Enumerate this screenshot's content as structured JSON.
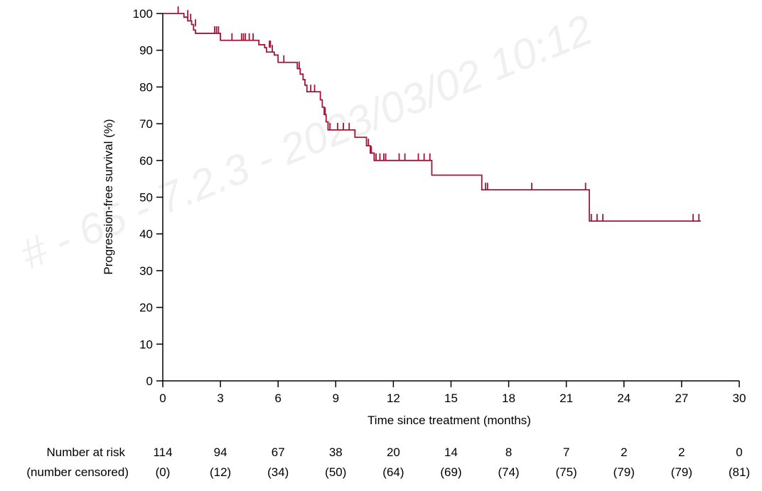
{
  "watermark": "# - 65 - 7.2.3 - 2023/03/02 10:12",
  "chart_data": {
    "type": "line",
    "title": "",
    "xlabel": "Time since treatment (months)",
    "ylabel": "Progression-free survival (%)",
    "xlim": [
      0,
      30
    ],
    "ylim": [
      0,
      100
    ],
    "x_ticks": [
      0,
      3,
      6,
      9,
      12,
      15,
      18,
      21,
      24,
      27,
      30
    ],
    "y_ticks": [
      0,
      10,
      20,
      30,
      40,
      50,
      60,
      70,
      80,
      90,
      100
    ],
    "color": "#a51535",
    "series": [
      {
        "name": "Progression-free survival",
        "steps": [
          [
            0,
            100
          ],
          [
            1.0,
            100
          ],
          [
            1.1,
            99
          ],
          [
            1.3,
            98
          ],
          [
            1.5,
            97
          ],
          [
            1.6,
            95.5
          ],
          [
            1.7,
            94.6
          ],
          [
            2.9,
            94.6
          ],
          [
            3.0,
            92.7
          ],
          [
            4.9,
            92.7
          ],
          [
            5.0,
            91.5
          ],
          [
            5.3,
            90.7
          ],
          [
            5.4,
            89.5
          ],
          [
            5.8,
            88.7
          ],
          [
            6.0,
            86.7
          ],
          [
            6.9,
            86.7
          ],
          [
            7.0,
            85.0
          ],
          [
            7.15,
            83.5
          ],
          [
            7.3,
            82.0
          ],
          [
            7.4,
            80.5
          ],
          [
            7.5,
            78.7
          ],
          [
            8.1,
            78.7
          ],
          [
            8.2,
            76.5
          ],
          [
            8.3,
            74.5
          ],
          [
            8.4,
            72.5
          ],
          [
            8.5,
            70.5
          ],
          [
            8.6,
            68.3
          ],
          [
            9.9,
            68.3
          ],
          [
            10.0,
            66.3
          ],
          [
            10.5,
            66.3
          ],
          [
            10.6,
            64.0
          ],
          [
            10.8,
            62.0
          ],
          [
            11.0,
            60.0
          ],
          [
            13.9,
            60.0
          ],
          [
            14.0,
            56.0
          ],
          [
            16.5,
            56.0
          ],
          [
            16.6,
            52.0
          ],
          [
            22.1,
            52.0
          ],
          [
            22.2,
            43.5
          ],
          [
            28.0,
            43.5
          ]
        ],
        "censored": [
          [
            0.8,
            100
          ],
          [
            1.3,
            99
          ],
          [
            1.45,
            98
          ],
          [
            1.7,
            96.5
          ],
          [
            2.7,
            94.6
          ],
          [
            2.8,
            94.6
          ],
          [
            2.9,
            94.6
          ],
          [
            3.6,
            92.7
          ],
          [
            4.1,
            92.7
          ],
          [
            4.2,
            92.7
          ],
          [
            4.3,
            92.7
          ],
          [
            4.5,
            92.7
          ],
          [
            4.7,
            92.7
          ],
          [
            5.55,
            90.7
          ],
          [
            5.6,
            90.7
          ],
          [
            5.7,
            89.5
          ],
          [
            6.3,
            86.7
          ],
          [
            7.1,
            85.0
          ],
          [
            7.7,
            78.7
          ],
          [
            7.9,
            78.7
          ],
          [
            8.45,
            72.5
          ],
          [
            8.7,
            68.3
          ],
          [
            9.1,
            68.3
          ],
          [
            9.4,
            68.3
          ],
          [
            9.7,
            68.3
          ],
          [
            10.7,
            64.0
          ],
          [
            10.85,
            62.0
          ],
          [
            11.0,
            60.0
          ],
          [
            11.1,
            60.0
          ],
          [
            11.3,
            60.0
          ],
          [
            11.5,
            60.0
          ],
          [
            11.6,
            60.0
          ],
          [
            12.3,
            60.0
          ],
          [
            12.6,
            60.0
          ],
          [
            13.3,
            60.0
          ],
          [
            13.6,
            60.0
          ],
          [
            13.9,
            60.0
          ],
          [
            16.8,
            52.0
          ],
          [
            16.9,
            52.0
          ],
          [
            19.2,
            52.0
          ],
          [
            22.0,
            52.0
          ],
          [
            22.3,
            43.5
          ],
          [
            22.6,
            43.5
          ],
          [
            22.9,
            43.5
          ],
          [
            27.6,
            43.5
          ],
          [
            27.9,
            43.5
          ]
        ]
      }
    ],
    "risk_table": {
      "label_at_risk": "Number at risk",
      "label_censored": "(number censored)",
      "times": [
        0,
        3,
        6,
        9,
        12,
        15,
        18,
        21,
        24,
        27,
        30
      ],
      "at_risk": [
        "114",
        "94",
        "67",
        "38",
        "20",
        "14",
        "8",
        "7",
        "2",
        "2",
        "0"
      ],
      "censored": [
        "(0)",
        "(12)",
        "(34)",
        "(50)",
        "(64)",
        "(69)",
        "(74)",
        "(75)",
        "(79)",
        "(79)",
        "(81)"
      ]
    }
  }
}
